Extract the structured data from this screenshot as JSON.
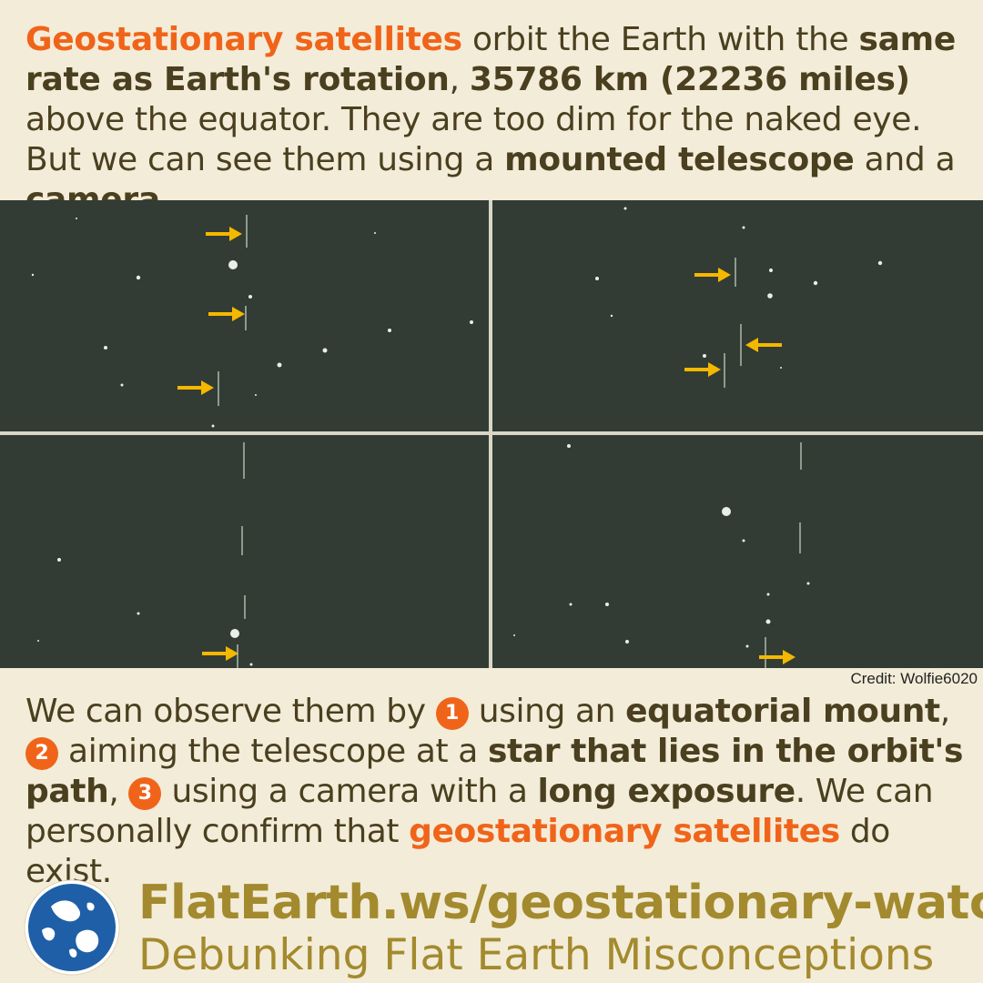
{
  "intro": {
    "t1": "Geostationary satellites",
    "t2": " orbit the Earth with the ",
    "t3": "same rate as Earth's rotation",
    "t4": ", ",
    "t5": "35786 km (22236 miles)",
    "t6": " above the equator. They are too dim for the naked eye. But we can see them using a ",
    "t7": "mounted telescope",
    "t8": " and a ",
    "t9": "camera",
    "t10": "."
  },
  "credit": "Credit: Wolfie6020",
  "outro": {
    "t1": "We can observe them by ",
    "n1": "1",
    "t2": " using an ",
    "t3": "equatorial mount",
    "t4": ", ",
    "n2": "2",
    "t5": " aiming the telescope at a ",
    "t6": "star that lies in the orbit's path",
    "t7": ", ",
    "n3": "3",
    "t8": " using a camera with a ",
    "t9": "long exposure",
    "t10": ". We can personally confirm that ",
    "t11": "geostationary satellites",
    "t12": " do exist."
  },
  "footer": {
    "site": "FlatEarth.ws/geostationary-watch",
    "tagline": "Debunking Flat Earth Misconceptions"
  },
  "colors": {
    "accent": "#f0641a",
    "text": "#4a3f1f",
    "brand": "#a38a2e",
    "background": "#f3ecd8",
    "sky": "#323c34",
    "arrow": "#f5b800"
  },
  "icons": {
    "logo": "earth-globe-icon",
    "arrow": "arrow-icon"
  }
}
